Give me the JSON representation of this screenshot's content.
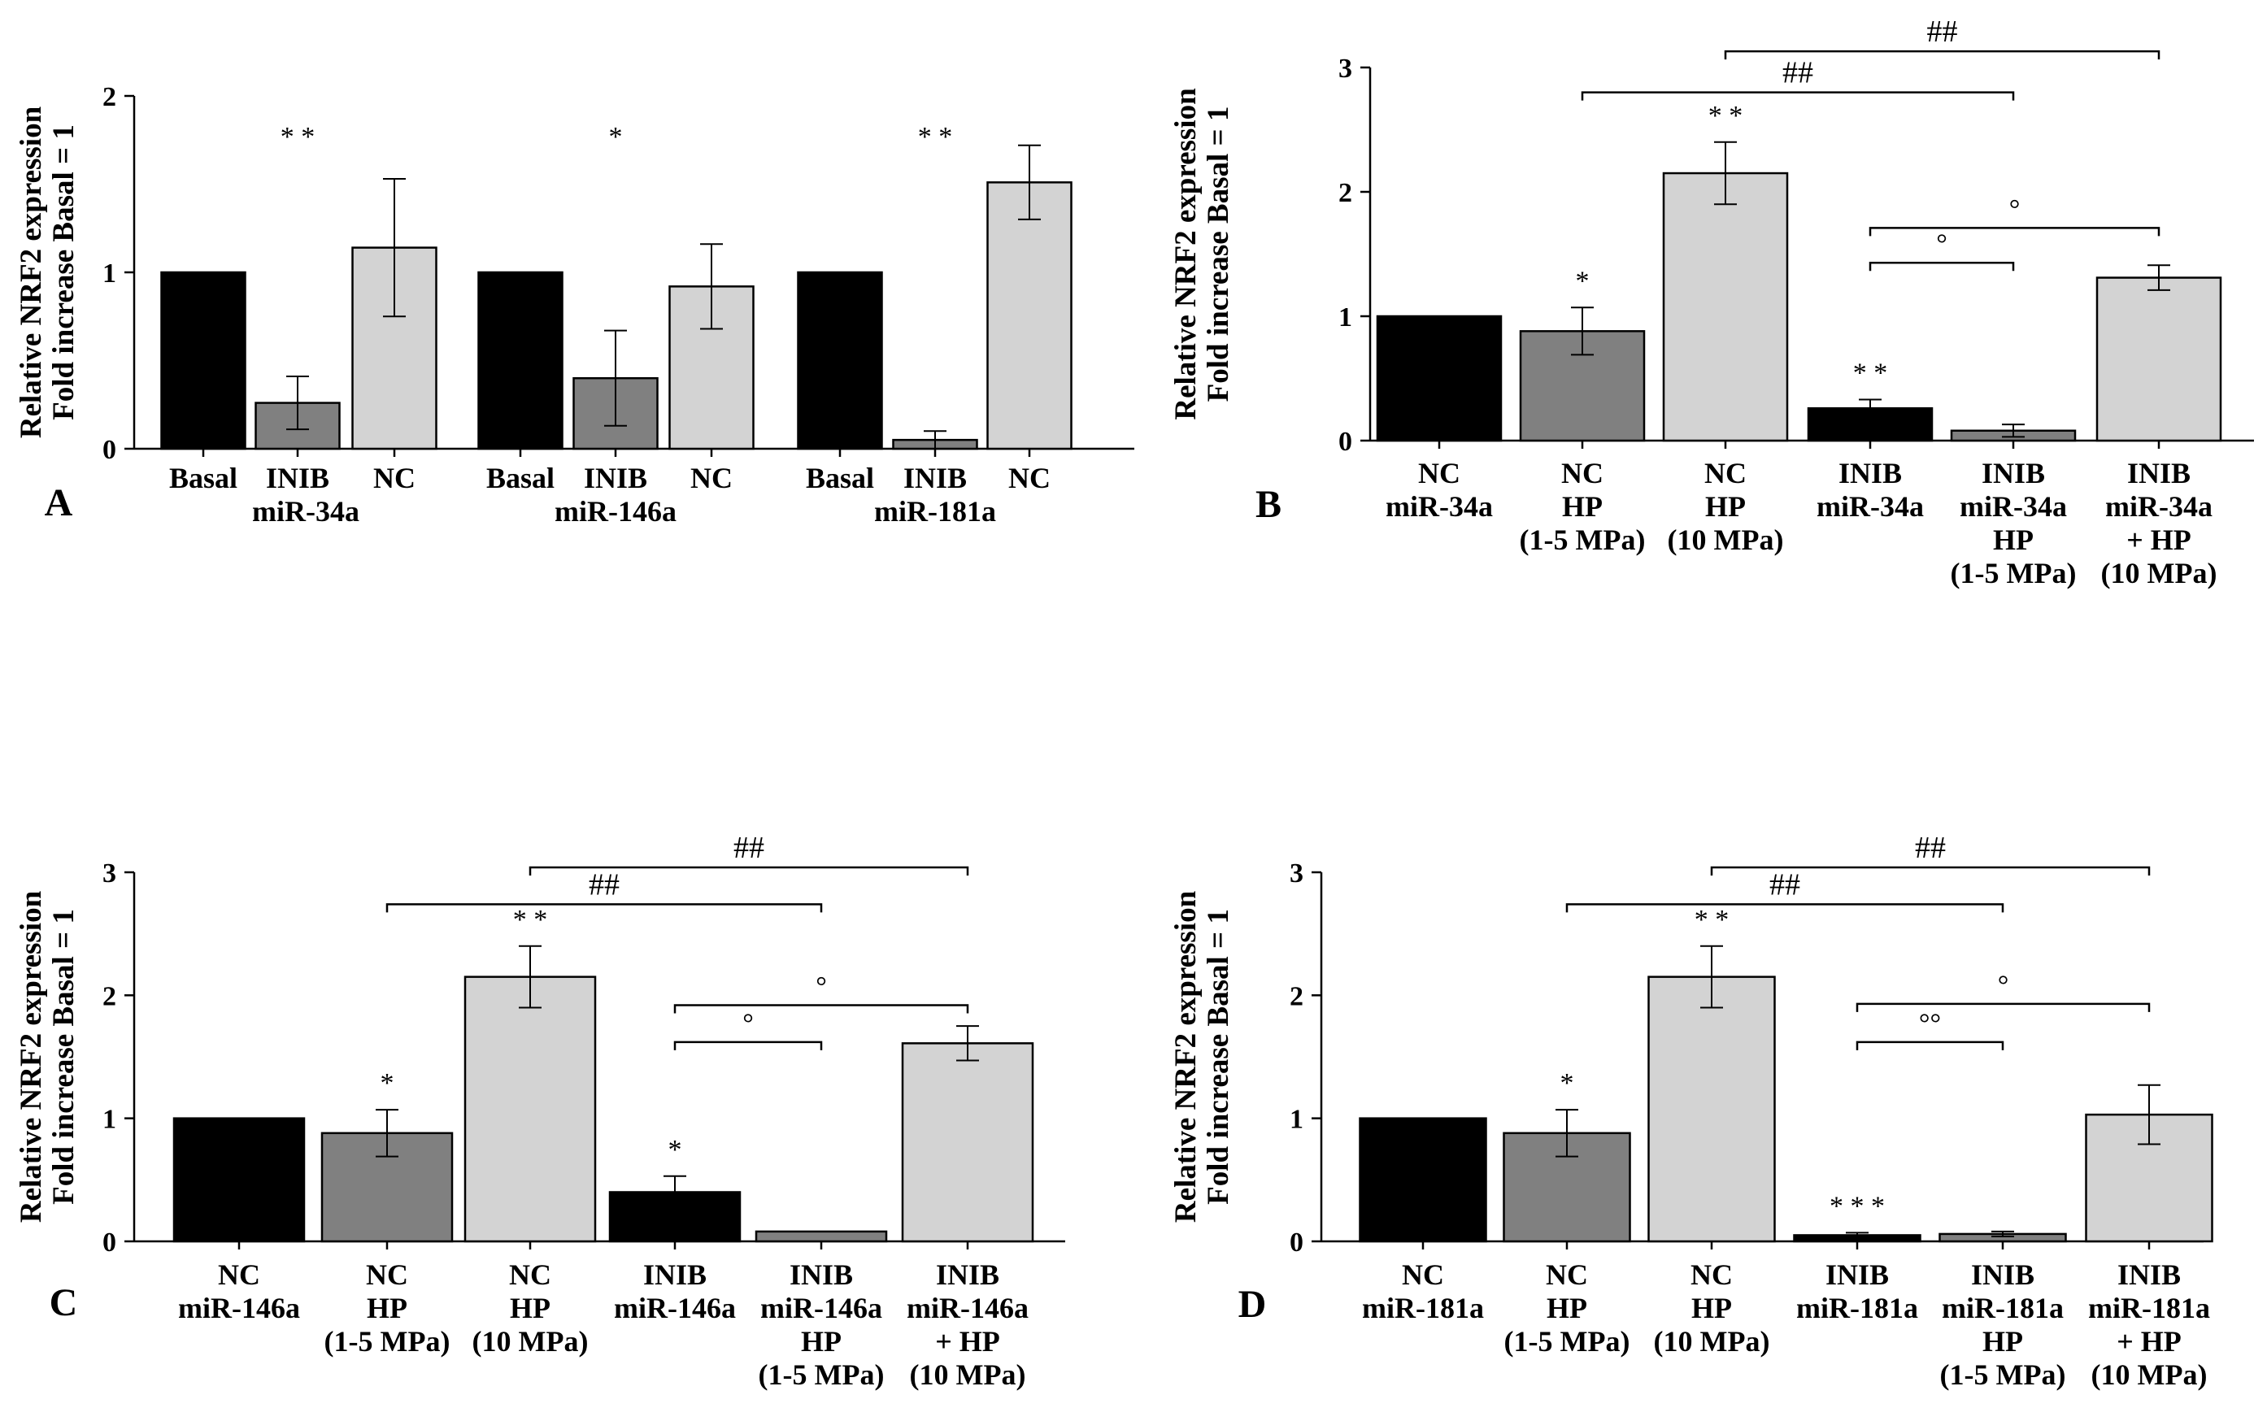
{
  "figure": {
    "ylabel_line1": "Relative NRF2 expression",
    "ylabel_line2": "Fold increase Basal = 1",
    "colors": {
      "black": "#000000",
      "dark_gray": "#808080",
      "light_gray": "#d3d3d3"
    }
  },
  "chart_data": [
    {
      "panel": "A",
      "type": "bar",
      "ylim": [
        0,
        2
      ],
      "yticks": [
        "0",
        "1",
        "2"
      ],
      "groups": [
        {
          "label": "miR-34a"
        },
        {
          "label": "miR-146a"
        },
        {
          "label": "miR-181a"
        }
      ],
      "bars": [
        {
          "cat": [
            "Basal"
          ],
          "value": 1.0,
          "err": 0,
          "color": "#000000",
          "group": 0,
          "sig": ""
        },
        {
          "cat": [
            "INIB"
          ],
          "value": 0.26,
          "err": 0.15,
          "color": "#808080",
          "group": 0,
          "sig": "* *"
        },
        {
          "cat": [
            "NC"
          ],
          "value": 1.14,
          "err": 0.39,
          "color": "#d3d3d3",
          "group": 0,
          "sig": ""
        },
        {
          "cat": [
            "Basal"
          ],
          "value": 1.0,
          "err": 0,
          "color": "#000000",
          "group": 1,
          "sig": ""
        },
        {
          "cat": [
            "INIB"
          ],
          "value": 0.4,
          "err": 0.27,
          "color": "#808080",
          "group": 1,
          "sig": "*"
        },
        {
          "cat": [
            "NC"
          ],
          "value": 0.92,
          "err": 0.24,
          "color": "#d3d3d3",
          "group": 1,
          "sig": ""
        },
        {
          "cat": [
            "Basal"
          ],
          "value": 1.0,
          "err": 0,
          "color": "#000000",
          "group": 2,
          "sig": ""
        },
        {
          "cat": [
            "INIB"
          ],
          "value": 0.05,
          "err": 0.05,
          "color": "#808080",
          "group": 2,
          "sig": "* *"
        },
        {
          "cat": [
            "NC"
          ],
          "value": 1.51,
          "err": 0.21,
          "color": "#d3d3d3",
          "group": 2,
          "sig": ""
        }
      ],
      "brackets": []
    },
    {
      "panel": "B",
      "type": "bar",
      "ylim": [
        0,
        3
      ],
      "yticks": [
        "0",
        "1",
        "2",
        "3"
      ],
      "groups": [],
      "bars": [
        {
          "cat": [
            "NC",
            "miR-34a"
          ],
          "value": 1.0,
          "err": 0,
          "color": "#000000",
          "sig": ""
        },
        {
          "cat": [
            "NC",
            "HP",
            "(1-5 MPa)"
          ],
          "value": 0.88,
          "err": 0.19,
          "color": "#808080",
          "sig": "*"
        },
        {
          "cat": [
            "NC",
            "HP",
            "(10 MPa)"
          ],
          "value": 2.15,
          "err": 0.25,
          "color": "#d3d3d3",
          "sig": "* *"
        },
        {
          "cat": [
            "INIB",
            "miR-34a"
          ],
          "value": 0.26,
          "err": 0.07,
          "color": "#000000",
          "sig": "* *"
        },
        {
          "cat": [
            "INIB",
            "miR-34a",
            "HP",
            "(1-5 MPa)"
          ],
          "value": 0.08,
          "err": 0.05,
          "color": "#808080",
          "sig": ""
        },
        {
          "cat": [
            "INIB",
            "miR-34a",
            "+ HP",
            "(10 MPa)"
          ],
          "value": 1.31,
          "err": 0.1,
          "color": "#d3d3d3",
          "sig": ""
        }
      ],
      "brackets": [
        {
          "from": 2,
          "to": 5,
          "level": 3.13,
          "label": "##"
        },
        {
          "from": 1,
          "to": 4,
          "level": 2.8,
          "label": "##"
        },
        {
          "from": 3,
          "to": 5,
          "level": 1.71,
          "label": "°"
        },
        {
          "from": 3,
          "to": 4,
          "level": 1.43,
          "label": "°"
        }
      ]
    },
    {
      "panel": "C",
      "type": "bar",
      "ylim": [
        0,
        3
      ],
      "yticks": [
        "0",
        "1",
        "2",
        "3"
      ],
      "groups": [],
      "bars": [
        {
          "cat": [
            "NC",
            "miR-146a"
          ],
          "value": 1.0,
          "err": 0,
          "color": "#000000",
          "sig": ""
        },
        {
          "cat": [
            "NC",
            "HP",
            "(1-5 MPa)"
          ],
          "value": 0.88,
          "err": 0.19,
          "color": "#808080",
          "sig": "*"
        },
        {
          "cat": [
            "NC",
            "HP",
            "(10 MPa)"
          ],
          "value": 2.15,
          "err": 0.25,
          "color": "#d3d3d3",
          "sig": "* *"
        },
        {
          "cat": [
            "INIB",
            "miR-146a"
          ],
          "value": 0.4,
          "err": 0.13,
          "color": "#000000",
          "sig": "*"
        },
        {
          "cat": [
            "INIB",
            "miR-146a",
            "HP",
            "(1-5 MPa)"
          ],
          "value": 0.08,
          "err": 0,
          "color": "#808080",
          "sig": ""
        },
        {
          "cat": [
            "INIB",
            "miR-146a",
            "+ HP",
            "(10 MPa)"
          ],
          "value": 1.61,
          "err": 0.14,
          "color": "#d3d3d3",
          "sig": ""
        }
      ],
      "brackets": [
        {
          "from": 2,
          "to": 5,
          "level": 3.04,
          "label": "##"
        },
        {
          "from": 1,
          "to": 4,
          "level": 2.74,
          "label": "##"
        },
        {
          "from": 3,
          "to": 5,
          "level": 1.92,
          "label": "°"
        },
        {
          "from": 3,
          "to": 4,
          "level": 1.62,
          "label": "°"
        }
      ]
    },
    {
      "panel": "D",
      "type": "bar",
      "ylim": [
        0,
        3
      ],
      "yticks": [
        "0",
        "1",
        "2",
        "3"
      ],
      "groups": [],
      "bars": [
        {
          "cat": [
            "NC",
            "miR-181a"
          ],
          "value": 1.0,
          "err": 0,
          "color": "#000000",
          "sig": ""
        },
        {
          "cat": [
            "NC",
            "HP",
            "(1-5 MPa)"
          ],
          "value": 0.88,
          "err": 0.19,
          "color": "#808080",
          "sig": "*"
        },
        {
          "cat": [
            "NC",
            "HP",
            "(10 MPa)"
          ],
          "value": 2.15,
          "err": 0.25,
          "color": "#d3d3d3",
          "sig": "* *"
        },
        {
          "cat": [
            "INIB",
            "miR-181a"
          ],
          "value": 0.05,
          "err": 0.02,
          "color": "#000000",
          "sig": "* * *"
        },
        {
          "cat": [
            "INIB",
            "miR-181a",
            "HP",
            "(1-5 MPa)"
          ],
          "value": 0.06,
          "err": 0.02,
          "color": "#808080",
          "sig": ""
        },
        {
          "cat": [
            "INIB",
            "miR-181a",
            "+ HP",
            "(10 MPa)"
          ],
          "value": 1.03,
          "err": 0.24,
          "color": "#d3d3d3",
          "sig": ""
        }
      ],
      "brackets": [
        {
          "from": 2,
          "to": 5,
          "level": 3.04,
          "label": "##"
        },
        {
          "from": 1,
          "to": 4,
          "level": 2.74,
          "label": "##"
        },
        {
          "from": 3,
          "to": 5,
          "level": 1.93,
          "label": "°"
        },
        {
          "from": 3,
          "to": 4,
          "level": 1.62,
          "label": "°°"
        }
      ]
    }
  ]
}
